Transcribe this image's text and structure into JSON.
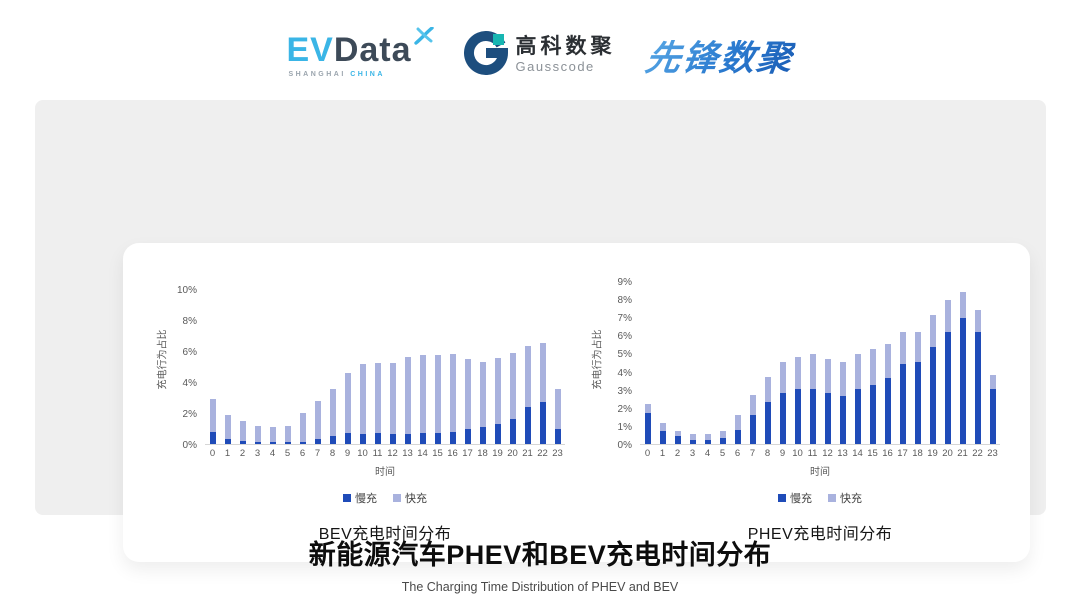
{
  "header": {
    "evdata": {
      "ev": "EV",
      "data": "Data",
      "sub_left": "SHANGHAI",
      "sub_right": "CHINA"
    },
    "gausscode": {
      "cn": "高科数聚",
      "en": "Gausscode"
    },
    "xianfeng": {
      "text": "先锋数聚"
    }
  },
  "colors": {
    "slow": "#1f4bb8",
    "fast": "#a9b2de",
    "accent_cyan": "#3ab5e6",
    "accent_navy": "#1d4e7e",
    "accent_teal": "#17b6b2",
    "xianfeng_blue": "#2b7bd0"
  },
  "chart_data": [
    {
      "type": "bar",
      "stacked": true,
      "title": "BEV充电时间分布",
      "xlabel": "时间",
      "ylabel": "充电行为占比",
      "ylim": [
        0,
        10
      ],
      "ytick_step": 2,
      "ytick_suffix": "%",
      "legend_position": "bottom",
      "grid": false,
      "x": [
        0,
        1,
        2,
        3,
        4,
        5,
        6,
        7,
        8,
        9,
        10,
        11,
        12,
        13,
        14,
        15,
        16,
        17,
        18,
        19,
        20,
        21,
        22,
        23
      ],
      "series": [
        {
          "name": "慢充",
          "values": [
            0.8,
            0.35,
            0.2,
            0.1,
            0.1,
            0.1,
            0.15,
            0.35,
            0.5,
            0.7,
            0.65,
            0.7,
            0.65,
            0.65,
            0.7,
            0.7,
            0.8,
            1.0,
            1.1,
            1.3,
            1.6,
            2.4,
            2.75,
            0.95
          ]
        },
        {
          "name": "快充",
          "values": [
            2.1,
            1.55,
            1.3,
            1.1,
            1.0,
            1.1,
            1.85,
            2.45,
            3.1,
            3.9,
            4.55,
            4.55,
            4.6,
            5.0,
            5.1,
            5.1,
            5.05,
            4.5,
            4.25,
            4.3,
            4.3,
            3.95,
            3.8,
            2.6
          ]
        }
      ]
    },
    {
      "type": "bar",
      "stacked": true,
      "title": "PHEV充电时间分布",
      "xlabel": "时间",
      "ylabel": "充电行为占比",
      "ylim": [
        0,
        9
      ],
      "ytick_step": 1,
      "ytick_suffix": "%",
      "legend_position": "bottom",
      "grid": false,
      "x": [
        0,
        1,
        2,
        3,
        4,
        5,
        6,
        7,
        8,
        9,
        10,
        11,
        12,
        13,
        14,
        15,
        16,
        17,
        18,
        19,
        20,
        21,
        22,
        23
      ],
      "series": [
        {
          "name": "慢充",
          "values": [
            1.75,
            0.7,
            0.45,
            0.25,
            0.25,
            0.35,
            0.8,
            1.6,
            2.35,
            2.85,
            3.05,
            3.05,
            2.85,
            2.65,
            3.05,
            3.3,
            3.65,
            4.45,
            4.55,
            5.4,
            6.2,
            7.0,
            6.2,
            3.05
          ]
        },
        {
          "name": "快充",
          "values": [
            0.45,
            0.45,
            0.3,
            0.3,
            0.3,
            0.35,
            0.8,
            1.15,
            1.35,
            1.7,
            1.8,
            1.95,
            1.85,
            1.9,
            1.95,
            2.0,
            1.9,
            1.75,
            1.65,
            1.75,
            1.8,
            1.45,
            1.25,
            0.8
          ]
        }
      ]
    }
  ],
  "footer": {
    "title": "新能源汽车PHEV和BEV充电时间分布",
    "subtitle": "The Charging Time Distribution of PHEV and BEV"
  }
}
